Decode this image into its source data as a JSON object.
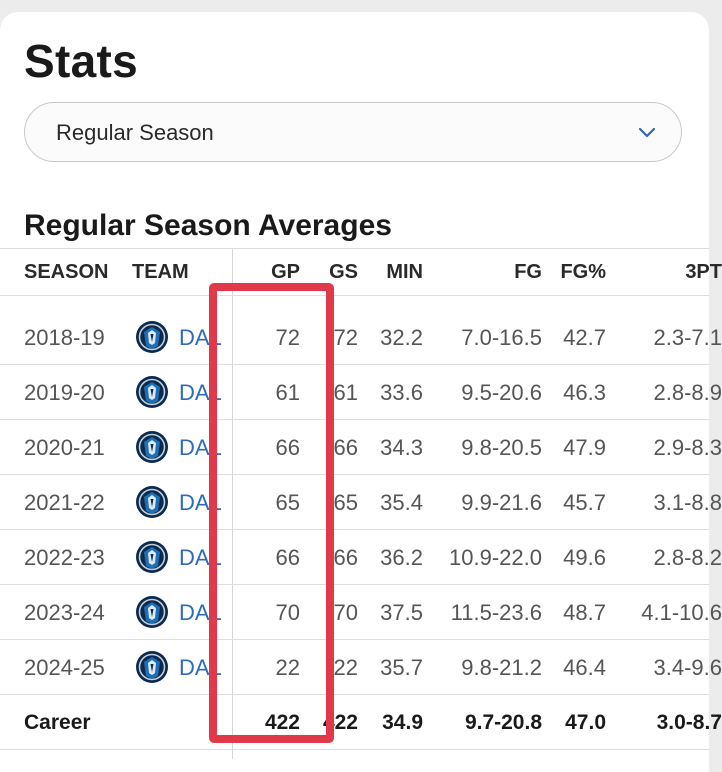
{
  "page": {
    "title": "Stats"
  },
  "season_select": {
    "value": "Regular Season"
  },
  "section": {
    "title": "Regular Season Averages"
  },
  "table": {
    "headers": {
      "season": "SEASON",
      "team": "TEAM",
      "gp": "GP",
      "gs": "GS",
      "min": "MIN",
      "fg": "FG",
      "fgp": "FG%",
      "tpt": "3PT"
    },
    "rows": [
      {
        "season": "2018-19",
        "team": "DAL",
        "gp": "72",
        "gs": "72",
        "min": "32.2",
        "fg": "7.0-16.5",
        "fgp": "42.7",
        "tpt": "2.3-7.1"
      },
      {
        "season": "2019-20",
        "team": "DAL",
        "gp": "61",
        "gs": "61",
        "min": "33.6",
        "fg": "9.5-20.6",
        "fgp": "46.3",
        "tpt": "2.8-8.9"
      },
      {
        "season": "2020-21",
        "team": "DAL",
        "gp": "66",
        "gs": "66",
        "min": "34.3",
        "fg": "9.8-20.5",
        "fgp": "47.9",
        "tpt": "2.9-8.3"
      },
      {
        "season": "2021-22",
        "team": "DAL",
        "gp": "65",
        "gs": "65",
        "min": "35.4",
        "fg": "9.9-21.6",
        "fgp": "45.7",
        "tpt": "3.1-8.8"
      },
      {
        "season": "2022-23",
        "team": "DAL",
        "gp": "66",
        "gs": "66",
        "min": "36.2",
        "fg": "10.9-22.0",
        "fgp": "49.6",
        "tpt": "2.8-8.2"
      },
      {
        "season": "2023-24",
        "team": "DAL",
        "gp": "70",
        "gs": "70",
        "min": "37.5",
        "fg": "11.5-23.6",
        "fgp": "48.7",
        "tpt": "4.1-10.6"
      },
      {
        "season": "2024-25",
        "team": "DAL",
        "gp": "22",
        "gs": "22",
        "min": "35.7",
        "fg": "9.8-21.2",
        "fgp": "46.4",
        "tpt": "3.4-9.6"
      }
    ],
    "career": {
      "label": "Career",
      "gp": "422",
      "gs": "422",
      "min": "34.9",
      "fg": "9.7-20.8",
      "fgp": "47.0",
      "tpt": "3.0-8.7"
    }
  },
  "colors": {
    "highlight": "#e2394a",
    "team_link": "#2d6bb8",
    "logo_navy": "#0b2a4f",
    "logo_blue": "#1f6fb5"
  }
}
